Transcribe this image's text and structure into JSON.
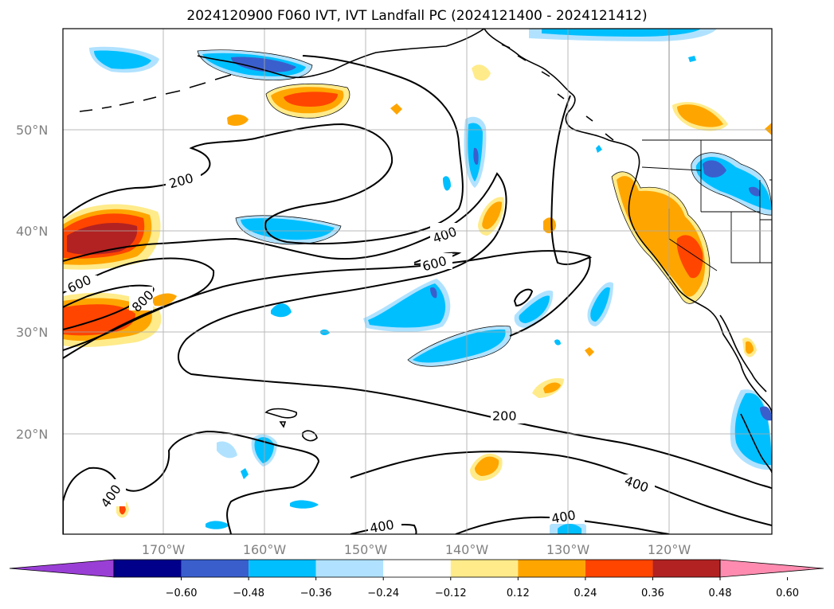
{
  "title": "2024120900 F060 IVT, IVT Landfall PC (2024121400 - 2024121412)",
  "axes": {
    "lat_ticks": [
      "50°N",
      "40°N",
      "30°N",
      "20°N"
    ],
    "lon_ticks": [
      "170°W",
      "160°W",
      "150°W",
      "140°W",
      "130°W",
      "120°W"
    ]
  },
  "contour_labels": [
    "200",
    "600",
    "800",
    "400",
    "600",
    "200",
    "400",
    "400",
    "400",
    "400"
  ],
  "colorbar": {
    "ticks": [
      "−0.60",
      "−0.48",
      "−0.36",
      "−0.24",
      "−0.12",
      "0.12",
      "0.24",
      "0.36",
      "0.48",
      "0.60"
    ],
    "colors": [
      "#9a3fd6",
      "#00008b",
      "#3a5fcd",
      "#00bfff",
      "#b0e2ff",
      "#ffffff",
      "#ffeb8a",
      "#ffa500",
      "#ff4500",
      "#b22222",
      "#ff8cb0"
    ]
  },
  "colors": {
    "neg_strong": "#3a5fcd",
    "neg_mid": "#00bfff",
    "neg_light": "#b0e2ff",
    "pos_light": "#ffeb8a",
    "pos_mid": "#ffa500",
    "pos_strong": "#ff4500",
    "pos_max": "#b22222"
  }
}
